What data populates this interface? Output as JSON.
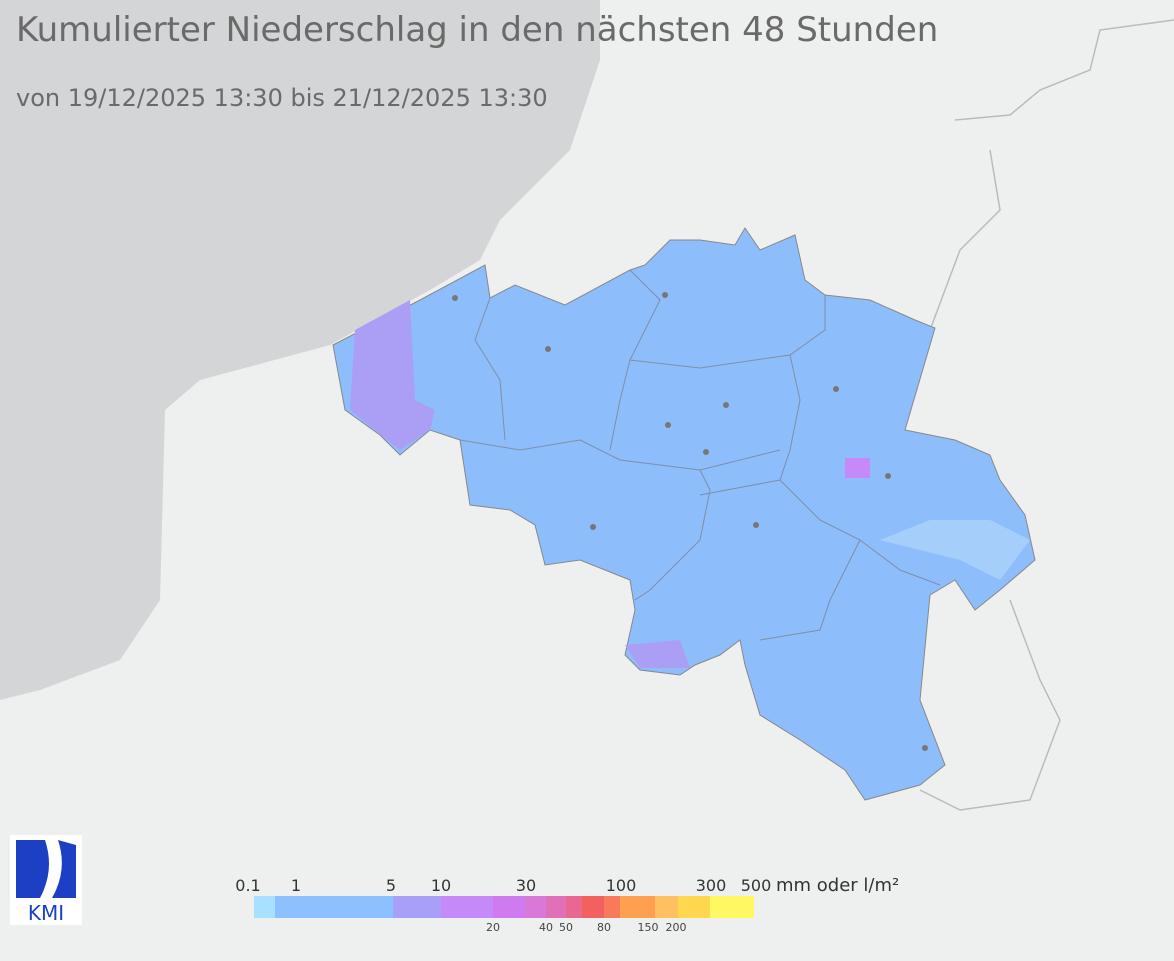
{
  "header": {
    "title": "Kumulierter Niederschlag in den nächsten 48 Stunden",
    "subtitle": "von 19/12/2025 13:30  bis 21/12/2025 13:30"
  },
  "legend": {
    "upper_labels": [
      "0.1",
      "1",
      "5",
      "10",
      "30",
      "100",
      "300",
      "500"
    ],
    "lower_labels": [
      "20",
      "40",
      "50",
      "80",
      "150",
      "200"
    ],
    "unit": "mm oder l/m²"
  },
  "logo": {
    "text": "KMI"
  }
}
